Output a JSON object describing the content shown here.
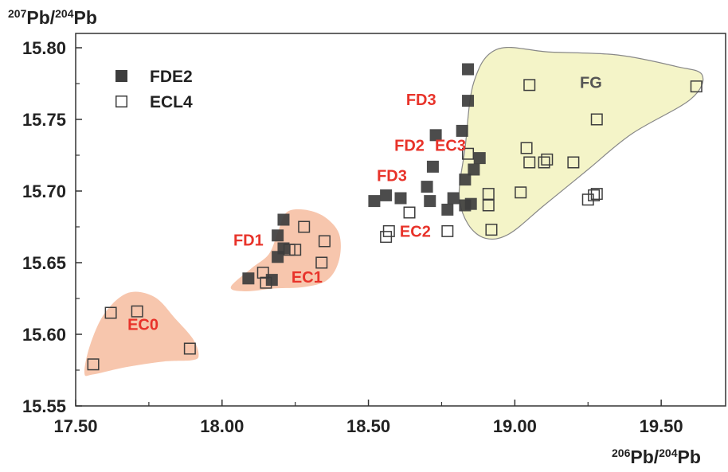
{
  "chart_data": {
    "type": "scatter",
    "xlabel": {
      "sup": "206",
      "a": "Pb/",
      "sup2": "204",
      "b": "Pb"
    },
    "ylabel": {
      "sup": "207",
      "a": "Pb/",
      "sup2": "204",
      "b": "Pb"
    },
    "xlim": [
      17.5,
      19.72
    ],
    "ylim": [
      15.55,
      15.81
    ],
    "xticks": [
      {
        "v": 17.5,
        "label": "17.50"
      },
      {
        "v": 18.0,
        "label": "18.00"
      },
      {
        "v": 18.5,
        "label": "18.50"
      },
      {
        "v": 19.0,
        "label": "19.00"
      },
      {
        "v": 19.5,
        "label": "19.50"
      }
    ],
    "yticks": [
      {
        "v": 15.55,
        "label": "15.55"
      },
      {
        "v": 15.6,
        "label": "15.60"
      },
      {
        "v": 15.65,
        "label": "15.65"
      },
      {
        "v": 15.7,
        "label": "15.70"
      },
      {
        "v": 15.75,
        "label": "15.75"
      },
      {
        "v": 15.8,
        "label": "15.80"
      }
    ],
    "grid": false,
    "legend_position": "top-left",
    "series": [
      {
        "name": "FDE2",
        "marker": "filled-square",
        "color": "#3d3d3d",
        "points": [
          [
            18.84,
            15.785
          ],
          [
            18.84,
            15.763
          ],
          [
            18.73,
            15.739
          ],
          [
            18.82,
            15.742
          ],
          [
            18.72,
            15.717
          ],
          [
            18.88,
            15.723
          ],
          [
            18.86,
            15.715
          ],
          [
            18.83,
            15.708
          ],
          [
            18.52,
            15.693
          ],
          [
            18.56,
            15.697
          ],
          [
            18.61,
            15.695
          ],
          [
            18.7,
            15.703
          ],
          [
            18.71,
            15.693
          ],
          [
            18.77,
            15.687
          ],
          [
            18.79,
            15.695
          ],
          [
            18.83,
            15.69
          ],
          [
            18.85,
            15.691
          ],
          [
            18.21,
            15.68
          ],
          [
            18.19,
            15.669
          ],
          [
            18.21,
            15.66
          ],
          [
            18.19,
            15.654
          ],
          [
            18.09,
            15.639
          ],
          [
            18.17,
            15.638
          ]
        ]
      },
      {
        "name": "ECL4",
        "marker": "open-square",
        "color": "#3d3d3d",
        "points": [
          [
            19.05,
            15.774
          ],
          [
            19.62,
            15.773
          ],
          [
            19.28,
            15.75
          ],
          [
            19.04,
            15.73
          ],
          [
            19.05,
            15.72
          ],
          [
            19.1,
            15.72
          ],
          [
            19.11,
            15.722
          ],
          [
            19.2,
            15.72
          ],
          [
            18.84,
            15.726
          ],
          [
            19.02,
            15.699
          ],
          [
            18.91,
            15.698
          ],
          [
            18.91,
            15.69
          ],
          [
            19.25,
            15.694
          ],
          [
            19.27,
            15.697
          ],
          [
            19.28,
            15.698
          ],
          [
            18.92,
            15.673
          ],
          [
            18.64,
            15.685
          ],
          [
            18.57,
            15.672
          ],
          [
            18.56,
            15.668
          ],
          [
            18.77,
            15.672
          ],
          [
            18.28,
            15.675
          ],
          [
            18.35,
            15.665
          ],
          [
            18.25,
            15.659
          ],
          [
            18.23,
            15.659
          ],
          [
            18.34,
            15.65
          ],
          [
            18.14,
            15.643
          ],
          [
            18.15,
            15.636
          ],
          [
            17.62,
            15.615
          ],
          [
            17.71,
            15.616
          ],
          [
            17.89,
            15.59
          ],
          [
            17.56,
            15.579
          ]
        ]
      }
    ],
    "annotations": [
      {
        "text": "FD3",
        "x": 18.68,
        "y": 15.76,
        "color": "#e8332a"
      },
      {
        "text": "FD2",
        "x": 18.64,
        "y": 15.728,
        "color": "#e8332a"
      },
      {
        "text": "EC3",
        "x": 18.78,
        "y": 15.728,
        "color": "#e8332a"
      },
      {
        "text": "FD3",
        "x": 18.58,
        "y": 15.707,
        "color": "#e8332a"
      },
      {
        "text": "EC2",
        "x": 18.66,
        "y": 15.668,
        "color": "#e8332a"
      },
      {
        "text": "FD1",
        "x": 18.09,
        "y": 15.662,
        "color": "#e8332a"
      },
      {
        "text": "EC1",
        "x": 18.29,
        "y": 15.636,
        "color": "#e8332a"
      },
      {
        "text": "EC0",
        "x": 17.73,
        "y": 15.603,
        "color": "#e8332a"
      },
      {
        "text": "FG",
        "x": 19.26,
        "y": 15.772,
        "color": "#555555"
      }
    ],
    "regions": [
      {
        "fill": "#f7c6ad",
        "stroke": "none",
        "outline": [
          [
            17.53,
            15.573
          ],
          [
            17.55,
            15.593
          ],
          [
            17.6,
            15.615
          ],
          [
            17.68,
            15.629
          ],
          [
            17.77,
            15.626
          ],
          [
            17.84,
            15.611
          ],
          [
            17.9,
            15.597
          ],
          [
            17.92,
            15.586
          ],
          [
            17.9,
            15.582
          ],
          [
            17.8,
            15.581
          ],
          [
            17.67,
            15.577
          ],
          [
            17.56,
            15.572
          ]
        ]
      },
      {
        "fill": "#f7c6ad",
        "stroke": "none",
        "outline": [
          [
            18.03,
            15.633
          ],
          [
            18.1,
            15.646
          ],
          [
            18.16,
            15.656
          ],
          [
            18.19,
            15.671
          ],
          [
            18.22,
            15.685
          ],
          [
            18.28,
            15.687
          ],
          [
            18.35,
            15.682
          ],
          [
            18.4,
            15.67
          ],
          [
            18.4,
            15.652
          ],
          [
            18.36,
            15.638
          ],
          [
            18.28,
            15.633
          ],
          [
            18.18,
            15.632
          ],
          [
            18.08,
            15.63
          ]
        ]
      },
      {
        "fill": "#f4f4c8",
        "stroke": "#888888",
        "outline": [
          [
            18.81,
            15.697
          ],
          [
            18.83,
            15.73
          ],
          [
            18.86,
            15.776
          ],
          [
            18.94,
            15.799
          ],
          [
            19.12,
            15.797
          ],
          [
            19.35,
            15.795
          ],
          [
            19.55,
            15.787
          ],
          [
            19.64,
            15.781
          ],
          [
            19.6,
            15.764
          ],
          [
            19.4,
            15.74
          ],
          [
            19.25,
            15.715
          ],
          [
            19.1,
            15.69
          ],
          [
            18.98,
            15.67
          ],
          [
            18.9,
            15.667
          ],
          [
            18.84,
            15.677
          ]
        ]
      }
    ]
  }
}
